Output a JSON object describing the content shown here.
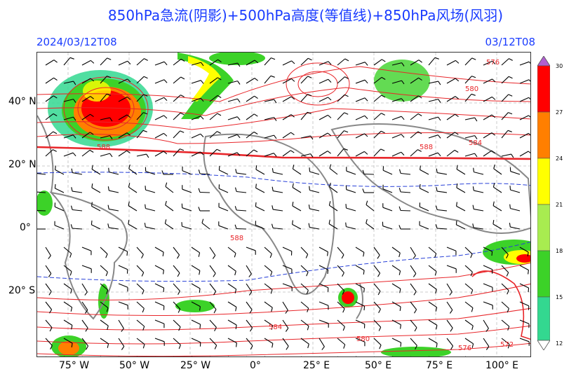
{
  "title": "850hPa急流(阴影)+500hPa高度(等值线)+850hPa风场(风羽)",
  "init_time": "2024/03/12T08",
  "valid_time": "03/12T08",
  "lat_labels": [
    "40° N",
    "20° N",
    "0°",
    "20° S"
  ],
  "lon_labels": [
    "75° W",
    "50° W",
    "25° W",
    "0°",
    "25° E",
    "50° E",
    "75° E",
    "100° E"
  ],
  "colorbar": {
    "ticks": [
      "30",
      "27",
      "24",
      "21",
      "18",
      "15",
      "12"
    ],
    "colors": [
      "#ff0000",
      "#ff7f00",
      "#ffff00",
      "#a8ec50",
      "#3cd228",
      "#33d890"
    ]
  },
  "contour_labels": [
    "588",
    "588",
    "584",
    "580",
    "576",
    "588",
    "584",
    "580",
    "576",
    "572"
  ],
  "colors": {
    "title": "#1a3cff",
    "contour": "#e8262a",
    "coast": "#888888",
    "river": "#9fb6e0",
    "zero_wind": "#2840d8"
  }
}
